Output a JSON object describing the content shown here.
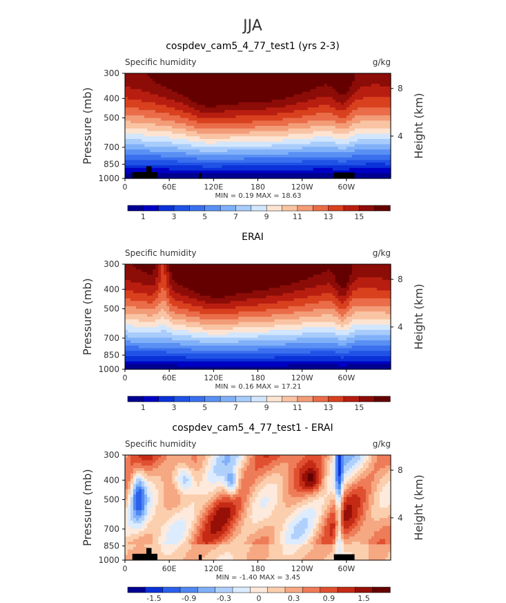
{
  "figure_title": "JJA",
  "colors": {
    "abs_scale": [
      "#000090",
      "#0000c4",
      "#0a32d8",
      "#2052e6",
      "#3a70ee",
      "#5a90f4",
      "#80b0f8",
      "#a8ccfb",
      "#d2e6fd",
      "#fde4d2",
      "#f9c4a4",
      "#f39c78",
      "#ea6c48",
      "#d8401e",
      "#b81e10",
      "#8c0c08",
      "#640000"
    ],
    "diff_scale": [
      "#000090",
      "#0a32d8",
      "#2a60ea",
      "#5088f2",
      "#80b0f8",
      "#b0d0fc",
      "#dcecfe",
      "#fdeadc",
      "#fbcfae",
      "#f6a882",
      "#ee7c58",
      "#e05030",
      "#c42a14",
      "#961008",
      "#640000"
    ]
  },
  "chart_data": [
    {
      "type": "heatmap",
      "id": "model",
      "title": "cospdev_cam5_4_77_test1 (yrs 2-3)",
      "left_label": "Specific humidity",
      "right_label": "g/kg",
      "ylabel": "Pressure (mb)",
      "y2label": "Height (km)",
      "yticks": [
        300,
        400,
        500,
        700,
        850,
        1000
      ],
      "y2ticks": [
        8,
        4
      ],
      "ylim": [
        300,
        1000
      ],
      "xticks": [
        "0",
        "60E",
        "120E",
        "180",
        "120W",
        "60W"
      ],
      "xlim": [
        0,
        360
      ],
      "stats": "MIN =    0.19   MAX =   18.63",
      "colorbar_labels": [
        "1",
        "3",
        "5",
        "7",
        "9",
        "11",
        "13",
        "15"
      ],
      "topography": true
    },
    {
      "type": "heatmap",
      "id": "obs",
      "title": "ERAI",
      "left_label": "Specific humidity",
      "right_label": "g/kg",
      "ylabel": "Pressure (mb)",
      "y2label": "Height (km)",
      "yticks": [
        300,
        400,
        500,
        700,
        850,
        1000
      ],
      "y2ticks": [
        8,
        4
      ],
      "ylim": [
        300,
        1000
      ],
      "xticks": [
        "0",
        "60E",
        "120E",
        "180",
        "120W",
        "60W"
      ],
      "xlim": [
        0,
        360
      ],
      "stats": "MIN =    0.16   MAX =   17.21",
      "colorbar_labels": [
        "1",
        "3",
        "5",
        "7",
        "9",
        "11",
        "13",
        "15"
      ],
      "topography": false
    },
    {
      "type": "heatmap",
      "id": "diff",
      "title": "cospdev_cam5_4_77_test1 - ERAI",
      "left_label": "Specific humidity",
      "right_label": "g/kg",
      "ylabel": "Pressure (mb)",
      "y2label": "Height (km)",
      "yticks": [
        300,
        400,
        500,
        700,
        850,
        1000
      ],
      "y2ticks": [
        8,
        4
      ],
      "ylim": [
        300,
        1000
      ],
      "xticks": [
        "0",
        "60E",
        "120E",
        "180",
        "120W",
        "60W"
      ],
      "xlim": [
        0,
        360
      ],
      "stats": "MIN =   -1.40   MAX =    3.45",
      "colorbar_labels": [
        "-1.5",
        "-0.9",
        "-0.3",
        "0",
        "0.3",
        "0.9",
        "1.5"
      ],
      "topography": true
    }
  ]
}
